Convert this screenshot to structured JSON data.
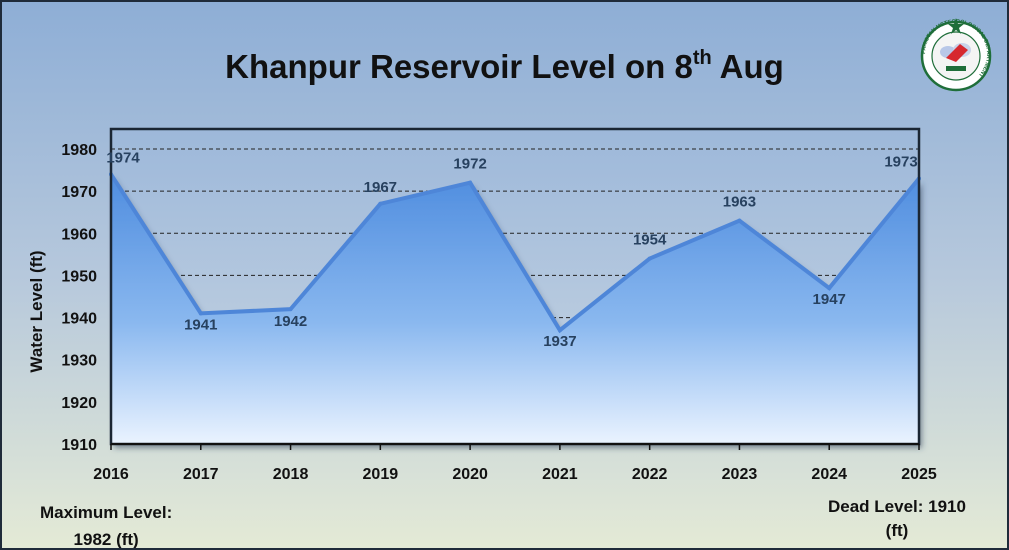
{
  "header": {
    "title_main": "Khanpur Reservoir Level on 8",
    "title_sup": "th",
    "title_end": "Aug"
  },
  "logo": {
    "icon": "pmd-emblem-icon",
    "ring_text": "PAKISTAN METEOROLOGICAL DEPARTMENT"
  },
  "notes": {
    "max_line1": "Maximum Level:",
    "max_line2": "1982 (ft)",
    "dead_line1": "Dead Level: 1910",
    "dead_line2": "(ft)"
  },
  "colors": {
    "line": "#4e86d8",
    "area_top": "#4f8ddf",
    "area_bottom": "#e8f2ff",
    "label": "#27415f",
    "plot_border": "#1b2633"
  },
  "chart_data": {
    "type": "area",
    "title": "Khanpur Reservoir Level on 8th Aug",
    "xlabel": "",
    "ylabel": "Water Level (ft)",
    "categories": [
      "2016",
      "2017",
      "2018",
      "2019",
      "2020",
      "2021",
      "2022",
      "2023",
      "2024",
      "2025"
    ],
    "values": [
      1974,
      1941,
      1942,
      1967,
      1972,
      1937,
      1954,
      1963,
      1947,
      1973
    ],
    "ylim": [
      1910,
      1980
    ],
    "yticks": [
      1910,
      1920,
      1930,
      1940,
      1950,
      1960,
      1970,
      1980
    ],
    "grid": "horizontal dashed",
    "data_labels": true,
    "legend": "none"
  }
}
